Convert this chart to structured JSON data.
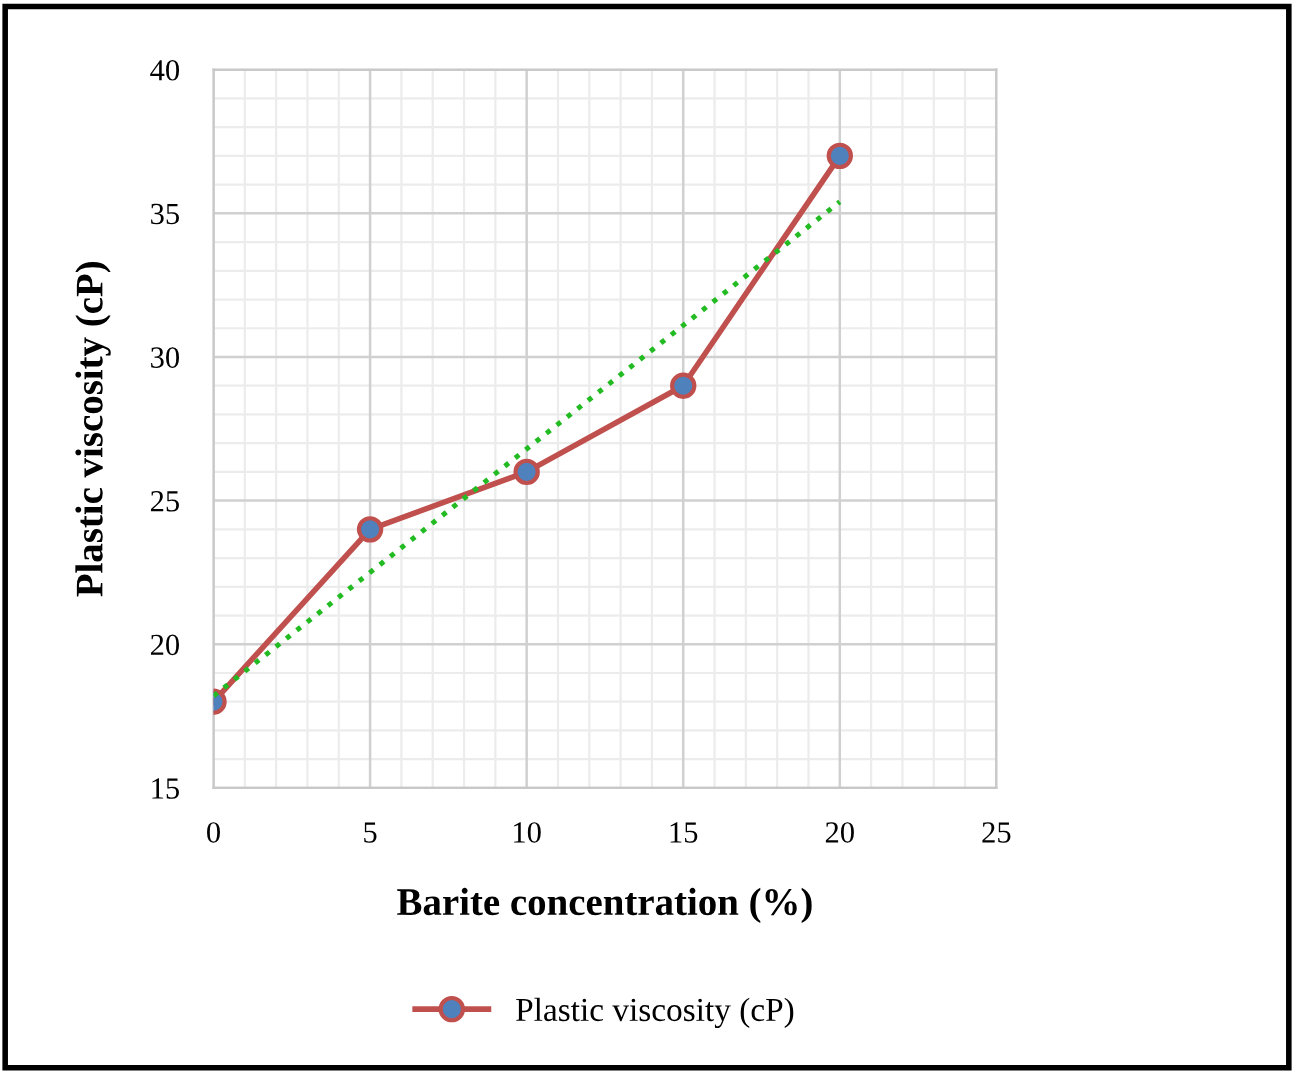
{
  "chart_data": {
    "type": "line",
    "xlabel": "Barite concentration (%)",
    "ylabel": "Plastic viscosity (cP)",
    "x": [
      0,
      5,
      10,
      15,
      20
    ],
    "series": [
      {
        "name": "Plastic viscosity (cP)",
        "color": "#c0504d",
        "values": [
          18,
          24,
          26,
          29,
          37
        ],
        "marker": "circle",
        "line_style": "solid"
      },
      {
        "type": "line",
        "color": "#22bb22",
        "x": [
          0,
          20
        ],
        "values": [
          18.2,
          35.4
        ],
        "marker": "none",
        "line_style": "dotted"
      }
    ],
    "xlim": [
      0,
      25
    ],
    "xticks": [
      0,
      5,
      10,
      15,
      20,
      25
    ],
    "ylim": [
      15,
      40
    ],
    "yticks": [
      15,
      20,
      25,
      30,
      35,
      40
    ],
    "grid": true,
    "legend": "bottom"
  }
}
